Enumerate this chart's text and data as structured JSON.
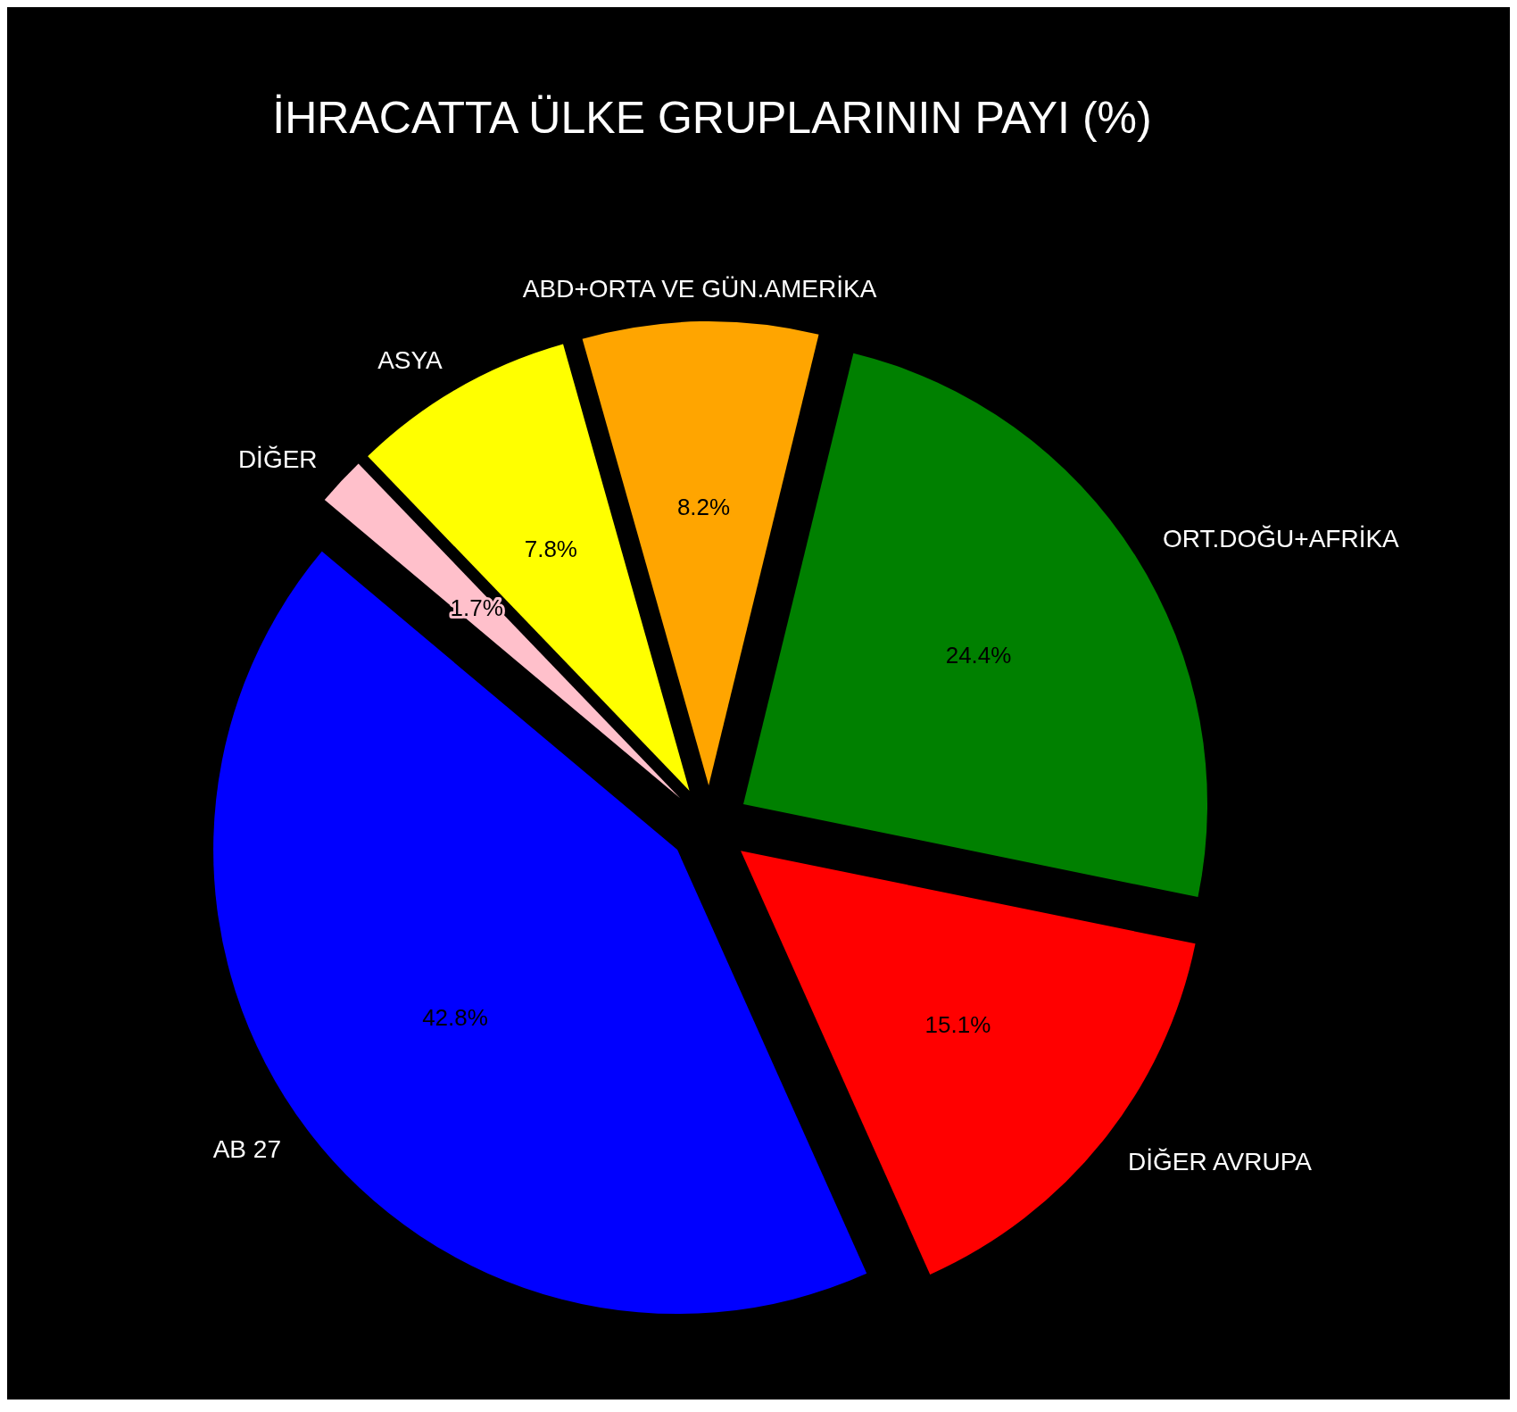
{
  "chart_data": {
    "type": "pie",
    "title": "İHRACATTA ÜLKE GRUPLARININ PAYI (%)",
    "categories": [
      "AB 27",
      "DİĞER AVRUPA",
      "ORT.DOĞU+AFRİKA",
      "ABD+ORTA VE GÜN.AMERİKA",
      "ASYA",
      "DİĞER"
    ],
    "values": [
      42.8,
      15.1,
      24.4,
      8.2,
      7.8,
      1.7
    ],
    "colors": [
      "#0000ff",
      "#ff0000",
      "#008000",
      "#ffa500",
      "#ffff00",
      "#ffc0cb"
    ],
    "value_labels": [
      "42.8%",
      "15.1%",
      "24.4%",
      "8.2%",
      "7.8%",
      "1.7%"
    ]
  }
}
